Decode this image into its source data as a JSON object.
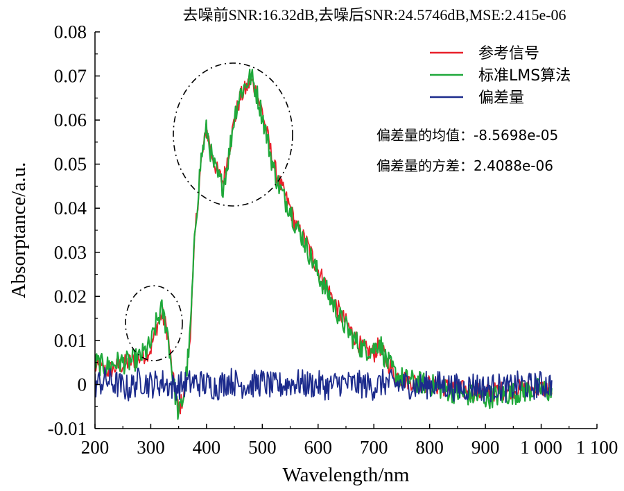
{
  "chart_data": {
    "type": "line",
    "title": "去噪前SNR:16.32dB,去噪后SNR:24.5746dB,MSE:2.415e-06",
    "xlabel": "Wavelength/nm",
    "ylabel": "Absorptance/a.u.",
    "xlim": [
      200,
      1100
    ],
    "ylim": [
      -0.01,
      0.08
    ],
    "x_ticks": [
      200,
      300,
      400,
      500,
      600,
      700,
      800,
      900,
      1000,
      1100
    ],
    "x_tick_labels": [
      "200",
      "300",
      "400",
      "500",
      "600",
      "700",
      "800",
      "900",
      "1 000",
      "1 100"
    ],
    "y_ticks": [
      -0.01,
      0,
      0.01,
      0.02,
      0.03,
      0.04,
      0.05,
      0.06,
      0.07,
      0.08
    ],
    "y_tick_labels": [
      "-0.01",
      "0",
      "0.01",
      "0.02",
      "0.03",
      "0.04",
      "0.05",
      "0.06",
      "0.07",
      "0.08"
    ],
    "grid": false,
    "legend_position": "top-right",
    "series": [
      {
        "name": "参考信号",
        "color": "#e8202a",
        "x": [
          200,
          220,
          240,
          260,
          280,
          300,
          310,
          320,
          330,
          340,
          350,
          360,
          370,
          380,
          390,
          400,
          410,
          420,
          430,
          440,
          450,
          460,
          470,
          480,
          490,
          500,
          510,
          520,
          530,
          540,
          550,
          560,
          570,
          580,
          590,
          600,
          620,
          640,
          660,
          680,
          700,
          710,
          720,
          740,
          760,
          780,
          800,
          850,
          900,
          950,
          1000,
          1020
        ],
        "y": [
          0.004,
          0.003,
          0.004,
          0.005,
          0.006,
          0.008,
          0.013,
          0.016,
          0.012,
          0.001,
          -0.006,
          -0.002,
          0.01,
          0.035,
          0.05,
          0.058,
          0.052,
          0.048,
          0.046,
          0.053,
          0.06,
          0.065,
          0.067,
          0.069,
          0.066,
          0.062,
          0.056,
          0.05,
          0.046,
          0.043,
          0.04,
          0.036,
          0.034,
          0.032,
          0.029,
          0.026,
          0.021,
          0.016,
          0.012,
          0.008,
          0.007,
          0.009,
          0.006,
          0.002,
          0.001,
          0.0005,
          0,
          -0.001,
          -0.002,
          -0.001,
          -0.001,
          -0.001
        ]
      },
      {
        "name": "标准LMS算法",
        "color": "#1fa83a",
        "x": [
          200,
          220,
          240,
          260,
          280,
          300,
          310,
          320,
          330,
          340,
          350,
          360,
          370,
          380,
          390,
          400,
          410,
          420,
          430,
          440,
          450,
          460,
          470,
          480,
          490,
          500,
          510,
          520,
          530,
          540,
          550,
          560,
          570,
          580,
          590,
          600,
          620,
          640,
          660,
          680,
          700,
          710,
          720,
          740,
          760,
          780,
          800,
          850,
          900,
          950,
          1000,
          1020
        ],
        "y": [
          0.005,
          0.004,
          0.005,
          0.005,
          0.006,
          0.009,
          0.014,
          0.017,
          0.012,
          0.001,
          -0.007,
          -0.002,
          0.01,
          0.036,
          0.051,
          0.058,
          0.051,
          0.047,
          0.045,
          0.052,
          0.061,
          0.066,
          0.068,
          0.07,
          0.066,
          0.061,
          0.055,
          0.049,
          0.045,
          0.042,
          0.04,
          0.036,
          0.034,
          0.031,
          0.028,
          0.025,
          0.02,
          0.015,
          0.011,
          0.008,
          0.008,
          0.01,
          0.006,
          0.002,
          0.001,
          0.0005,
          0,
          -0.002,
          -0.003,
          -0.002,
          -0.001,
          -0.002
        ]
      },
      {
        "name": "偏差量",
        "color": "#1c2b8c",
        "x": [
          200,
          220,
          240,
          260,
          280,
          300,
          320,
          340,
          360,
          380,
          400,
          420,
          440,
          460,
          480,
          500,
          520,
          540,
          560,
          580,
          600,
          620,
          640,
          660,
          680,
          700,
          720,
          740,
          760,
          780,
          800,
          820,
          840,
          860,
          880,
          900,
          920,
          940,
          960,
          980,
          1000,
          1020
        ],
        "y": [
          0,
          0.001,
          0,
          -0.001,
          0.001,
          0,
          0.0005,
          -0.0005,
          0,
          0.0005,
          0,
          -0.0005,
          0.001,
          0,
          0,
          0.0005,
          -0.0005,
          0,
          0.0005,
          0,
          0,
          -0.0005,
          0.0005,
          0,
          0,
          -0.0005,
          0.0005,
          0,
          0,
          -0.0005,
          0,
          0,
          -0.0005,
          -0.001,
          0,
          -0.001,
          -0.0005,
          -0.001,
          0,
          -0.0005,
          0,
          0
        ]
      }
    ],
    "annotations": [
      "偏差量的均值：-8.5698e-05",
      "偏差量的方差：2.4088e-06"
    ]
  }
}
